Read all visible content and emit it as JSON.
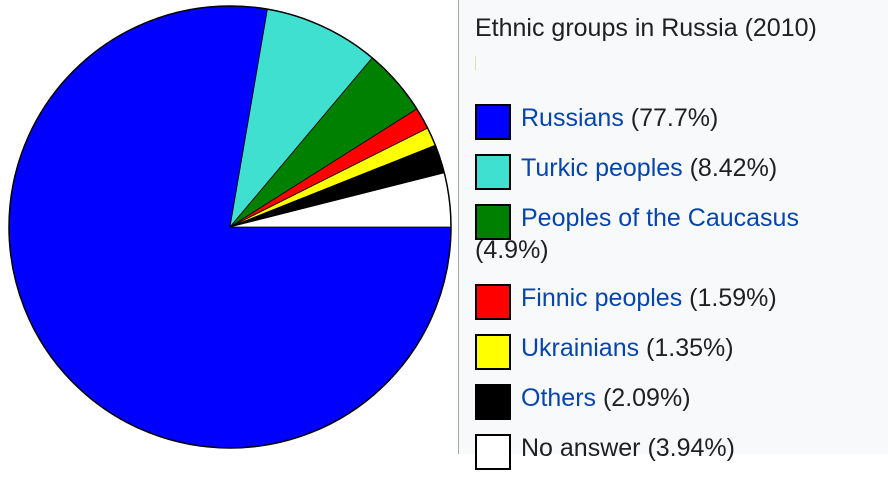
{
  "chart_data": {
    "type": "pie",
    "title": "Ethnic groups in Russia (2010)",
    "slices": [
      {
        "label": "Russians",
        "value": 77.7,
        "value_label": "(77.7%)",
        "color": "#0000ff",
        "link": true
      },
      {
        "label": "Turkic peoples",
        "value": 8.42,
        "value_label": "(8.42%)",
        "color": "#40e0d0",
        "link": true
      },
      {
        "label": "Peoples of the Caucasus",
        "value": 4.9,
        "value_label": "(4.9%)",
        "color": "#008000",
        "link": true
      },
      {
        "label": "Finnic peoples",
        "value": 1.59,
        "value_label": "(1.59%)",
        "color": "#ff0000",
        "link": true
      },
      {
        "label": "Ukrainians",
        "value": 1.35,
        "value_label": "(1.35%)",
        "color": "#ffff00",
        "link": true
      },
      {
        "label": "Others",
        "value": 2.09,
        "value_label": "(2.09%)",
        "color": "#000000",
        "link": true
      },
      {
        "label": "No answer",
        "value": 3.94,
        "value_label": "(3.94%)",
        "color": "#ffffff",
        "link": false
      }
    ],
    "legend_position": "right"
  }
}
